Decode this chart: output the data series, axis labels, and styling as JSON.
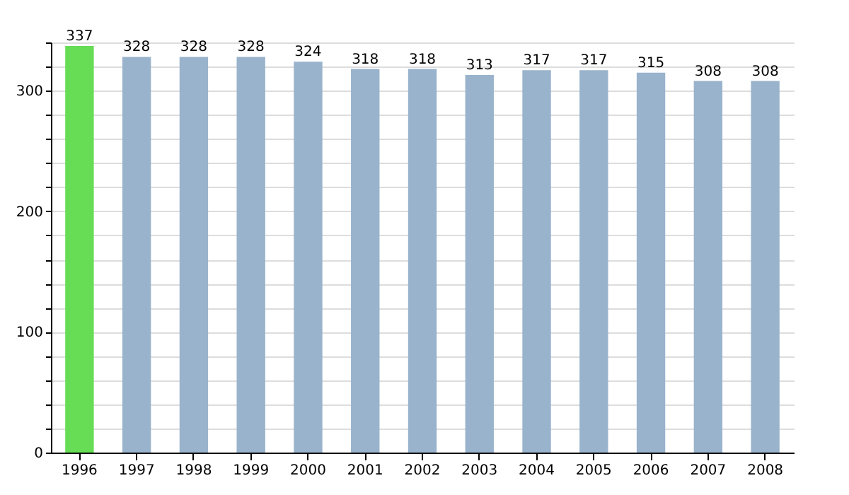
{
  "chart_data": {
    "type": "bar",
    "categories": [
      "1996",
      "1997",
      "1998",
      "1999",
      "2000",
      "2001",
      "2002",
      "2003",
      "2004",
      "2005",
      "2006",
      "2007",
      "2008"
    ],
    "values": [
      337,
      328,
      328,
      328,
      324,
      318,
      318,
      313,
      317,
      317,
      315,
      308,
      308
    ],
    "colors": [
      "#66dd55",
      "#99b3cc",
      "#99b3cc",
      "#99b3cc",
      "#99b3cc",
      "#99b3cc",
      "#99b3cc",
      "#99b3cc",
      "#99b3cc",
      "#99b3cc",
      "#99b3cc",
      "#99b3cc",
      "#99b3cc"
    ],
    "ylim": [
      0,
      340
    ],
    "yticks": [
      0,
      {
        "value": 20,
        "label": null
      },
      {
        "value": 40,
        "label": null
      },
      {
        "value": 60,
        "label": null
      },
      {
        "value": 80,
        "label": null
      },
      100,
      {
        "value": 120,
        "label": null
      },
      {
        "value": 140,
        "label": null
      },
      {
        "value": 160,
        "label": null
      },
      {
        "value": 180,
        "label": null
      },
      200,
      {
        "value": 220,
        "label": null
      },
      {
        "value": 240,
        "label": null
      },
      {
        "value": 260,
        "label": null
      },
      {
        "value": 280,
        "label": null
      },
      300,
      {
        "value": 320,
        "label": null
      },
      {
        "value": 340,
        "label": null
      }
    ],
    "grid": "y",
    "data_labels": true
  }
}
